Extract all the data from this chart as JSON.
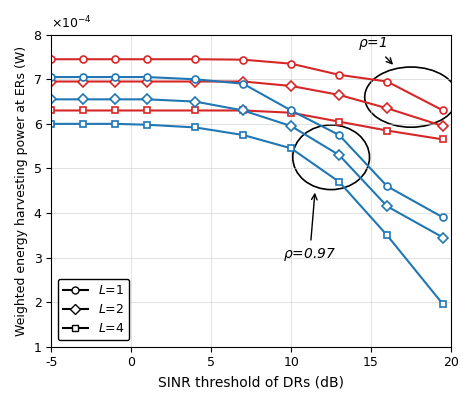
{
  "x": [
    -5,
    -3,
    -1,
    1,
    4,
    7,
    10,
    13,
    16,
    19.5
  ],
  "rho1_L1": [
    0.000745,
    0.000745,
    0.000745,
    0.000745,
    0.000745,
    0.000744,
    0.000735,
    0.00071,
    0.000695,
    0.00063
  ],
  "rho1_L2": [
    0.000695,
    0.000695,
    0.000695,
    0.000695,
    0.000695,
    0.000695,
    0.000685,
    0.000665,
    0.000635,
    0.000595
  ],
  "rho1_L4": [
    0.00063,
    0.00063,
    0.00063,
    0.00063,
    0.00063,
    0.00063,
    0.000625,
    0.000605,
    0.000585,
    0.000565
  ],
  "rho097_L1": [
    0.000705,
    0.000705,
    0.000705,
    0.000705,
    0.0007,
    0.00069,
    0.00063,
    0.000575,
    0.00046,
    0.00039
  ],
  "rho097_L2": [
    0.000655,
    0.000655,
    0.000655,
    0.000655,
    0.00065,
    0.00063,
    0.000595,
    0.00053,
    0.000415,
    0.000345
  ],
  "rho097_L4": [
    0.0006,
    0.0006,
    0.0006,
    0.000598,
    0.000592,
    0.000575,
    0.000545,
    0.00047,
    0.00035,
    0.000195
  ],
  "color_rho1": "#d62728",
  "color_rho097": "#1f77b4",
  "xlabel": "SINR threshold of DRs (dB)",
  "ylabel": "Weighted energy harvesting power at ERs (W)",
  "xlim": [
    -5,
    20
  ],
  "ylim": [
    0.0001,
    0.0008
  ],
  "xticks": [
    -5,
    0,
    5,
    10,
    15,
    20
  ],
  "yticks": [
    0.0001,
    0.0002,
    0.0003,
    0.0004,
    0.0005,
    0.0006,
    0.0007,
    0.0008
  ],
  "ytick_labels": [
    "1",
    "2",
    "3",
    "4",
    "5",
    "6",
    "7",
    "8"
  ],
  "xtick_labels": [
    "-5",
    "0",
    "5",
    "10",
    "15",
    "20"
  ]
}
